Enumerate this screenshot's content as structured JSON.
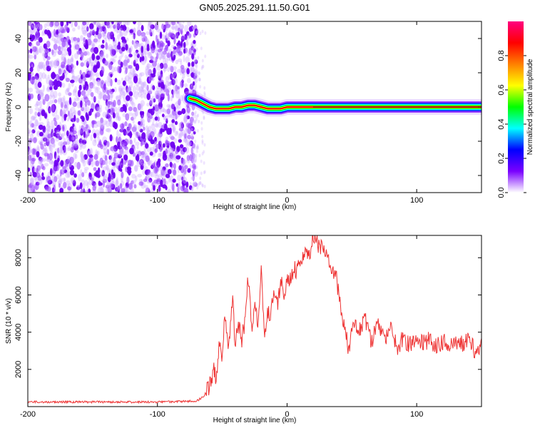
{
  "title": "GN05.2025.291.11.50.G01",
  "chart_data": [
    {
      "type": "heatmap",
      "xlabel": "Height of straight line (km)",
      "ylabel": "Frequency (Hz)",
      "xlim": [
        -200,
        150
      ],
      "ylim": [
        -50,
        50
      ],
      "xticks": [
        -200,
        -100,
        0,
        100
      ],
      "yticks": [
        -40,
        -20,
        0,
        20,
        40
      ],
      "noise_region": [
        -200,
        -70
      ],
      "ridge": [
        {
          "x": -75,
          "y": 5
        },
        {
          "x": -70,
          "y": 4
        },
        {
          "x": -65,
          "y": 2
        },
        {
          "x": -60,
          "y": 0
        },
        {
          "x": -55,
          "y": -1
        },
        {
          "x": -50,
          "y": -1
        },
        {
          "x": -45,
          "y": -1
        },
        {
          "x": -40,
          "y": 0
        },
        {
          "x": -35,
          "y": 0
        },
        {
          "x": -30,
          "y": 1
        },
        {
          "x": -25,
          "y": 1
        },
        {
          "x": -20,
          "y": 0
        },
        {
          "x": -15,
          "y": -1
        },
        {
          "x": -10,
          "y": -1
        },
        {
          "x": -5,
          "y": -1
        },
        {
          "x": 0,
          "y": 0
        },
        {
          "x": 10,
          "y": 0
        },
        {
          "x": 20,
          "y": 0
        },
        {
          "x": 150,
          "y": 0
        }
      ],
      "colorbar": {
        "label": "Normalized spectral amplitude",
        "min": 0.0,
        "max": 1.0,
        "ticks": [
          0.0,
          0.2,
          0.4,
          0.6,
          0.8
        ],
        "colors": [
          "#ffffff",
          "#7a00ff",
          "#0000ff",
          "#00ffff",
          "#00ff00",
          "#ffff00",
          "#ff8000",
          "#ff0000",
          "#ff0080"
        ]
      }
    },
    {
      "type": "line",
      "xlabel": "Height of straight line (km)",
      "ylabel": "SNR (10 * v/v)",
      "xlim": [
        -200,
        150
      ],
      "ylim": [
        0,
        9200
      ],
      "xticks": [
        -200,
        -100,
        0,
        100
      ],
      "yticks": [
        2000,
        4000,
        6000,
        8000
      ],
      "color": "#ee3333",
      "series": [
        {
          "x": [
            -200,
            -180,
            -160,
            -140,
            -120,
            -100,
            -80,
            -70,
            -65,
            -60,
            -57,
            -55,
            -52,
            -50,
            -48,
            -45,
            -42,
            -40,
            -38,
            -35,
            -32,
            -30,
            -27,
            -25,
            -22,
            -20,
            -17,
            -15,
            -12,
            -10,
            -7,
            -5,
            -2,
            0,
            3,
            5,
            8,
            10,
            13,
            15,
            18,
            20,
            22,
            25,
            28,
            30,
            33,
            35,
            38,
            40,
            42,
            45,
            48,
            50,
            55,
            60,
            65,
            70,
            75,
            80,
            85,
            90,
            95,
            100,
            105,
            110,
            115,
            120,
            125,
            130,
            135,
            140,
            145,
            150
          ],
          "y": [
            250,
            250,
            250,
            250,
            250,
            250,
            280,
            300,
            500,
            1000,
            2000,
            1500,
            3500,
            2500,
            5000,
            3000,
            6000,
            2800,
            4500,
            3500,
            4800,
            7000,
            4000,
            5500,
            4500,
            7200,
            3800,
            5000,
            5200,
            6000,
            5500,
            6800,
            6000,
            7000,
            6800,
            7500,
            7200,
            7800,
            8000,
            8200,
            8400,
            9200,
            8800,
            8600,
            8400,
            8200,
            7800,
            7500,
            7000,
            6000,
            5000,
            4000,
            3000,
            4500,
            4000,
            4800,
            3500,
            4400,
            3600,
            4100,
            3200,
            3700,
            3300,
            3800,
            3400,
            3600,
            3300,
            3500,
            3200,
            3600,
            3300,
            3500,
            3000,
            3200
          ]
        }
      ]
    }
  ]
}
